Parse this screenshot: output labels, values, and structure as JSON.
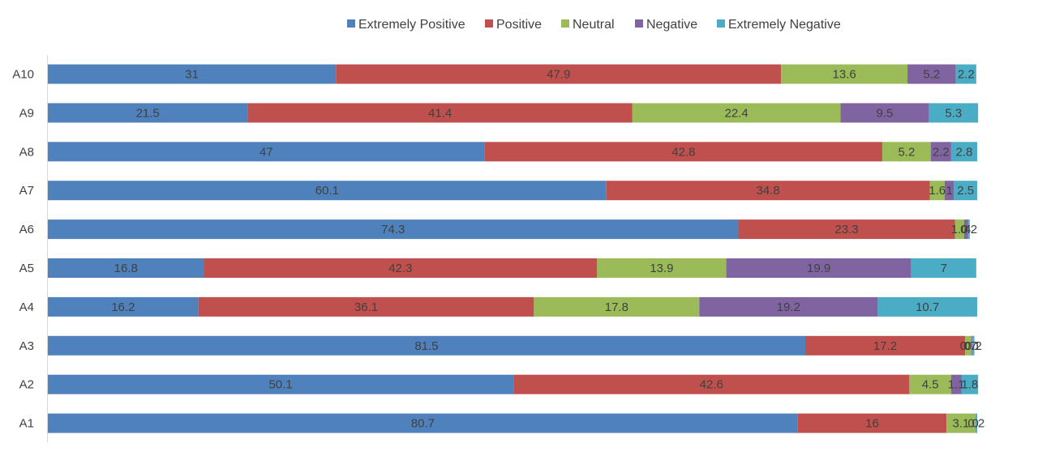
{
  "chart_data": {
    "type": "bar",
    "orientation": "horizontal",
    "stacked": true,
    "title": "",
    "xlabel": "",
    "ylabel": "",
    "xlim": [
      0,
      100
    ],
    "grid": false,
    "legend_position": "top",
    "categories": [
      "A10",
      "A9",
      "A8",
      "A7",
      "A6",
      "A5",
      "A4",
      "A3",
      "A2",
      "A1"
    ],
    "series": [
      {
        "name": "Extremely Positive",
        "color": "#4F81BD",
        "values": [
          31,
          21.5,
          47,
          60.1,
          74.3,
          16.8,
          16.2,
          81.5,
          50.1,
          80.7
        ],
        "labels": [
          "31",
          "21.5",
          "47",
          "60.1",
          "74.3",
          "16.8",
          "16.2",
          "81.5",
          "50.1",
          "80.7"
        ]
      },
      {
        "name": "Positive",
        "color": "#C0504D",
        "values": [
          47.9,
          41.4,
          42.8,
          34.8,
          23.3,
          42.3,
          36.1,
          17.2,
          42.6,
          16
        ],
        "labels": [
          "47.9",
          "41.4",
          "42.8",
          "34.8",
          "23.3",
          "42.3",
          "36.1",
          "17.2",
          "42.6",
          "16"
        ]
      },
      {
        "name": "Neutral",
        "color": "#9BBB59",
        "values": [
          13.6,
          22.4,
          5.2,
          1.6,
          1.0,
          13.9,
          17.8,
          0.7,
          4.5,
          3.1
        ],
        "labels": [
          "13.6",
          "22.4",
          "5.2",
          "1.6",
          "1.0",
          "13.9",
          "17.8",
          "0.7",
          "4.5",
          "3.1"
        ]
      },
      {
        "name": "Negative",
        "color": "#8064A2",
        "values": [
          5.2,
          9.5,
          2.2,
          1,
          0.4,
          19.9,
          19.2,
          0.1,
          1.1,
          0
        ],
        "labels": [
          "5.2",
          "9.5",
          "2.2",
          "1",
          ".4",
          "19.9",
          "19.2",
          "0.1",
          "1.1",
          "0"
        ]
      },
      {
        "name": "Extremely Negative",
        "color": "#4BACC6",
        "values": [
          2.2,
          5.3,
          2.8,
          2.5,
          0.2,
          7,
          10.7,
          0.2,
          1.8,
          0.2
        ],
        "labels": [
          "2.2",
          "5.3",
          "2.8",
          "2.5",
          "0.2",
          "7",
          "10.7",
          "0.2",
          "1.8",
          "0.2"
        ]
      }
    ]
  }
}
